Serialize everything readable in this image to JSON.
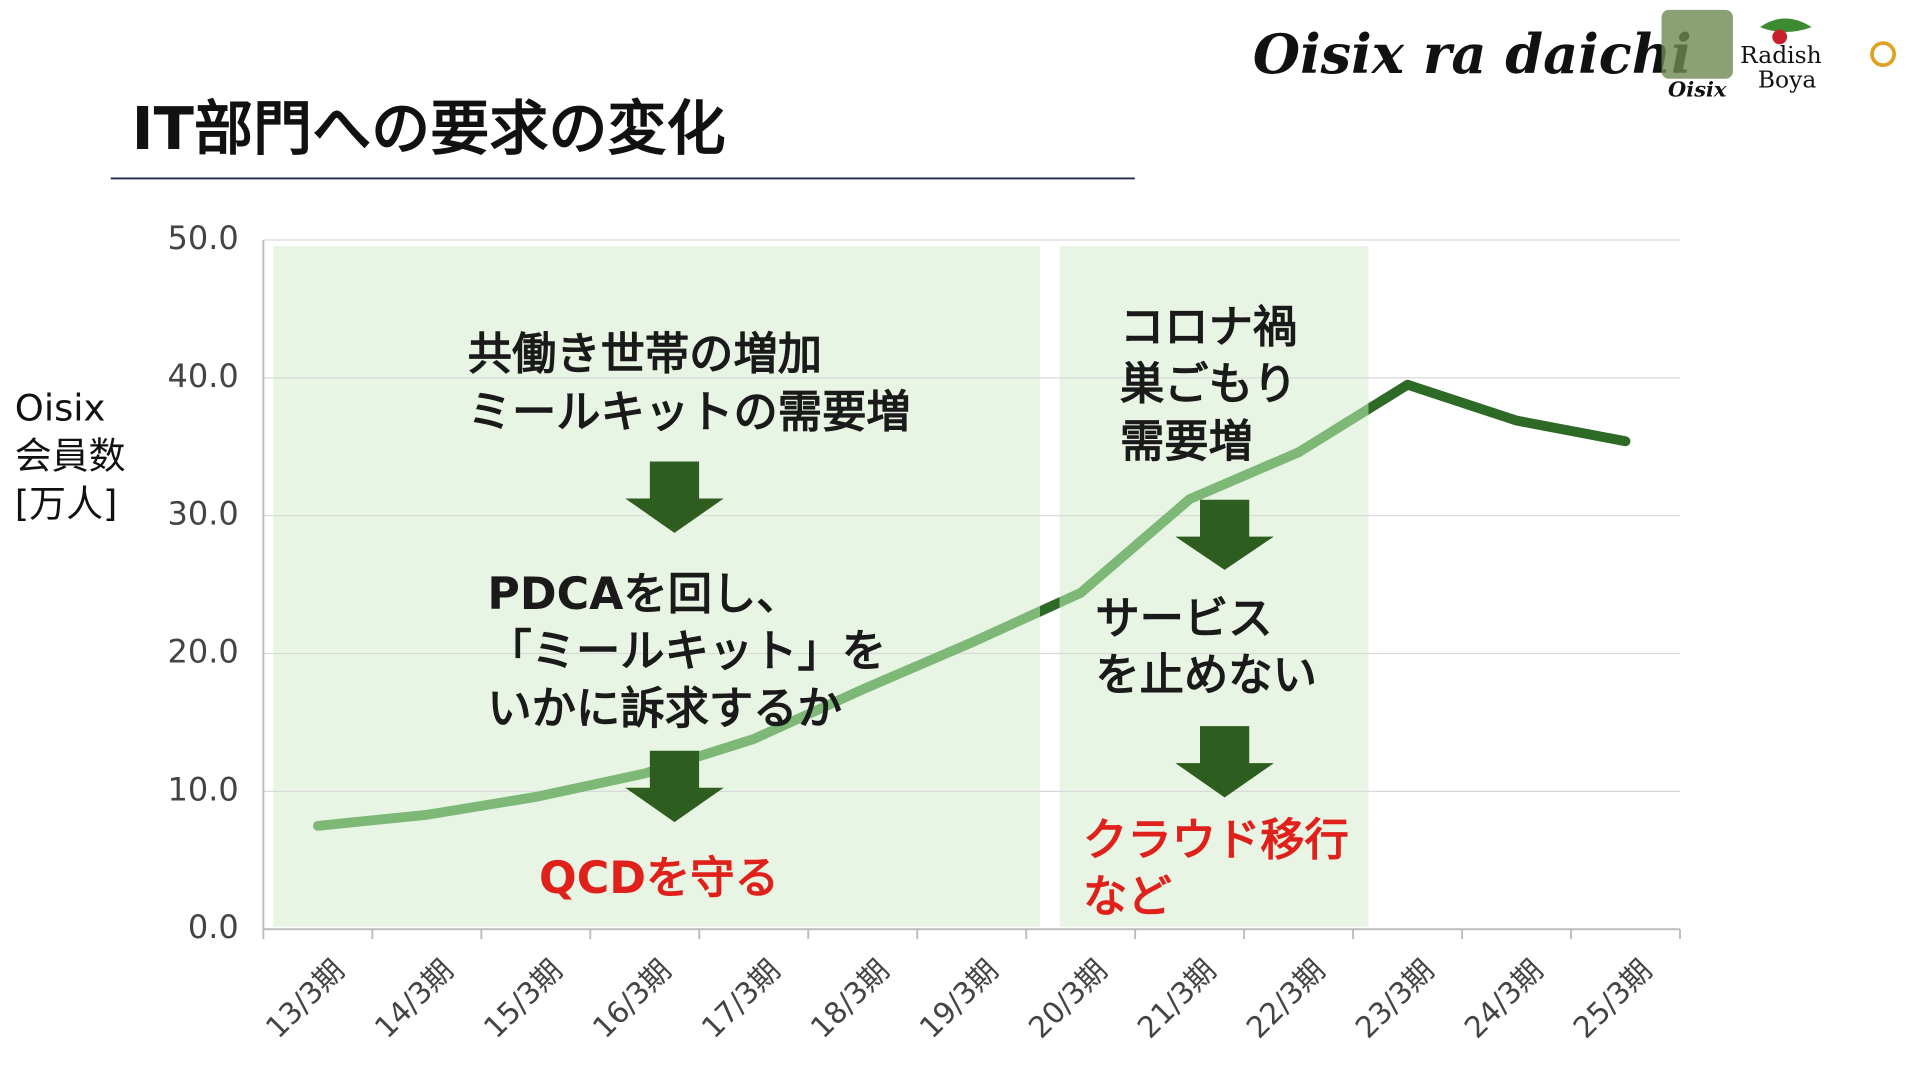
{
  "header": {
    "logo": "Oisix ra daichi",
    "brand_1": "Oisix",
    "brand_2_line_1": "Radish",
    "brand_2_line_2": "Boya"
  },
  "chart_data": {
    "type": "line",
    "title": "IT部門への要求の変化",
    "y_label_lines": [
      "Oisix",
      "会員数",
      "[万人]"
    ],
    "categories": [
      "13/3期",
      "14/3期",
      "15/3期",
      "16/3期",
      "17/3期",
      "18/3期",
      "19/3期",
      "20/3期",
      "21/3期",
      "22/3期",
      "23/3期",
      "24/3期",
      "25/3期"
    ],
    "values": [
      7.5,
      8.3,
      9.6,
      11.3,
      13.8,
      17.4,
      20.8,
      24.4,
      31.2,
      34.6,
      39.5,
      36.9,
      35.4
    ],
    "color": "#2d6a25",
    "highlight_color": "#7db877",
    "ylim": [
      0,
      50
    ],
    "yticks": [
      {
        "value": 0,
        "label": "0.0"
      },
      {
        "value": 10,
        "label": "10.0"
      },
      {
        "value": 20,
        "label": "20.0"
      },
      {
        "value": 30,
        "label": "30.0"
      },
      {
        "value": 40,
        "label": "40.0"
      },
      {
        "value": 50,
        "label": "50.0"
      }
    ],
    "grid": true,
    "annotations": [
      {
        "lines": [
          "共働き世帯の増加",
          "ミールキットの需要増"
        ],
        "color": "#1a1a1a"
      },
      {
        "lines": [
          "PDCAを回し、",
          "「ミールキット」を",
          "いかに訴求するか"
        ],
        "color": "#1a1a1a"
      },
      {
        "lines": [
          "QCDを守る"
        ],
        "color": "#e0201b"
      },
      {
        "lines": [
          "コロナ禍",
          "巣ごもり",
          "需要増"
        ],
        "color": "#1a1a1a"
      },
      {
        "lines": [
          "サービス",
          "を止めない"
        ],
        "color": "#1a1a1a"
      },
      {
        "lines": [
          "クラウド移行",
          "など"
        ],
        "color": "#e0201b"
      }
    ]
  }
}
